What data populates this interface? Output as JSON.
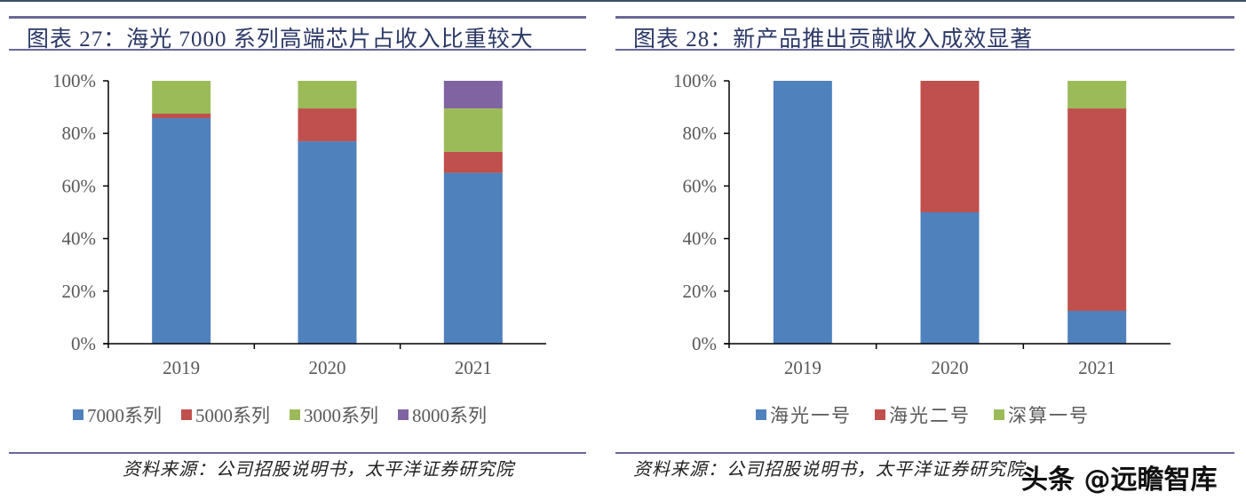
{
  "figures": [
    {
      "title": "图表 27：海光 7000 系列高端芯片占收入比重较大",
      "source": "资料来源：公司招股说明书，太平洋证券研究院"
    },
    {
      "title": "图表 28：新产品推出贡献收入成效显著",
      "source": "资料来源：公司招股说明书，太平洋证券研究院"
    }
  ],
  "watermark": "头条 @远瞻智库",
  "chart_data": [
    {
      "type": "bar",
      "stacked": true,
      "title": "海光 7000 系列高端芯片占收入比重较大",
      "categories": [
        "2019",
        "2020",
        "2021"
      ],
      "series": [
        {
          "name": "7000系列",
          "color": "#4f81bd",
          "values": [
            85.8,
            77.0,
            65.0
          ]
        },
        {
          "name": "5000系列",
          "color": "#c0504d",
          "values": [
            1.7,
            12.5,
            8.0
          ]
        },
        {
          "name": "3000系列",
          "color": "#9bbb59",
          "values": [
            12.5,
            10.5,
            16.5
          ]
        },
        {
          "name": "8000系列",
          "color": "#8064a2",
          "values": [
            0,
            0,
            10.5
          ]
        }
      ],
      "yticks": [
        "0%",
        "20%",
        "40%",
        "60%",
        "80%",
        "100%"
      ],
      "ylim": [
        0,
        100
      ],
      "xlabel": "",
      "ylabel": "",
      "grid": false,
      "legend_position": "bottom"
    },
    {
      "type": "bar",
      "stacked": true,
      "title": "新产品推出贡献收入成效显著",
      "categories": [
        "2019",
        "2020",
        "2021"
      ],
      "series": [
        {
          "name": "海光一号",
          "color": "#4f81bd",
          "values": [
            100,
            50,
            12.5
          ]
        },
        {
          "name": "海光二号",
          "color": "#c0504d",
          "values": [
            0,
            50,
            77.0
          ]
        },
        {
          "name": "深算一号",
          "color": "#9bbb59",
          "values": [
            0,
            0,
            10.5
          ]
        }
      ],
      "yticks": [
        "0%",
        "20%",
        "40%",
        "60%",
        "80%",
        "100%"
      ],
      "ylim": [
        0,
        100
      ],
      "xlabel": "",
      "ylabel": "",
      "grid": false,
      "legend_position": "bottom"
    }
  ]
}
